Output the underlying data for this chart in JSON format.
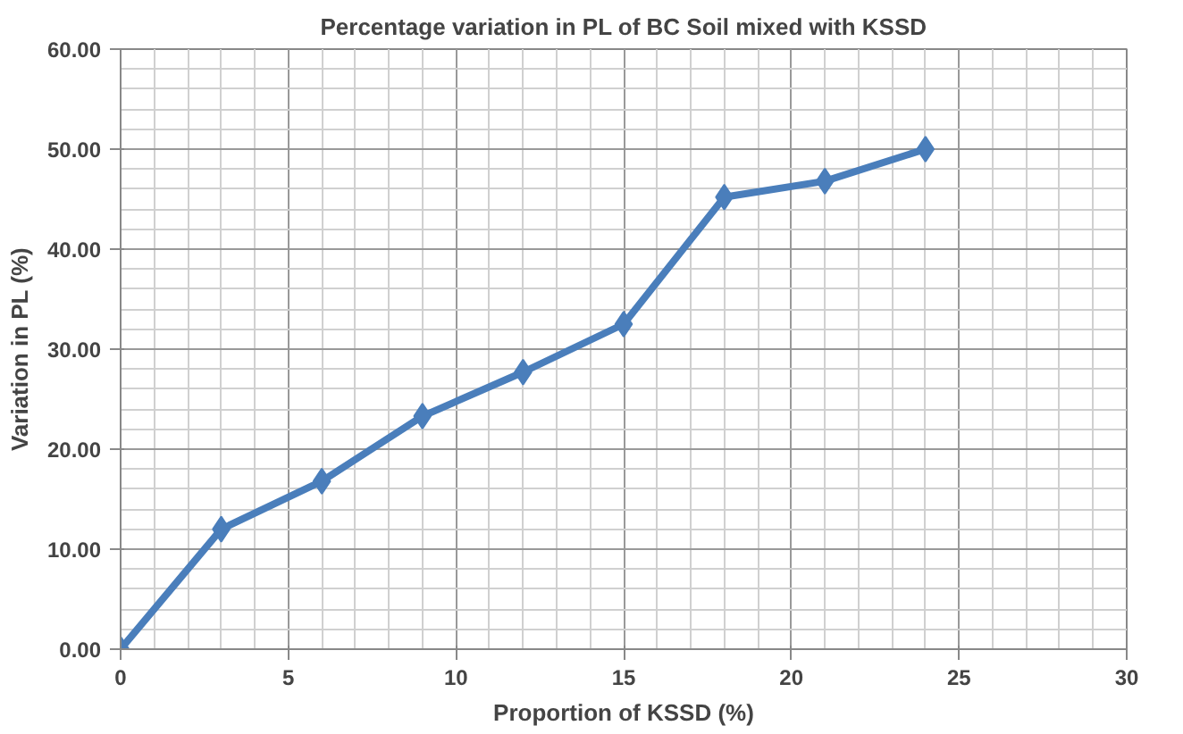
{
  "chart_data": {
    "type": "line",
    "title": "Percentage variation in PL of BC Soil mixed with KSSD",
    "xlabel": "Proportion of KSSD (%)",
    "ylabel": "Variation in PL (%)",
    "x": [
      0,
      3,
      6,
      9,
      12,
      15,
      18,
      21,
      24
    ],
    "series": [
      {
        "color": "#4a7ebb",
        "values": [
          0,
          12.0,
          16.8,
          23.3,
          27.7,
          32.5,
          45.2,
          46.8,
          50.0
        ]
      }
    ],
    "xlim": [
      0,
      30
    ],
    "xticks": [
      0,
      5,
      10,
      15,
      20,
      25,
      30
    ],
    "ylim": [
      0,
      60
    ],
    "yticks": [
      {
        "value": 0,
        "label": "0.00"
      },
      {
        "value": 10,
        "label": "10.00"
      },
      {
        "value": 20,
        "label": "20.00"
      },
      {
        "value": 30,
        "label": "30.00"
      },
      {
        "value": 40,
        "label": "40.00"
      },
      {
        "value": 50,
        "label": "50.00"
      },
      {
        "value": 60,
        "label": "60.00"
      }
    ],
    "grid": true,
    "marker": "diamond",
    "line_style": "solid"
  }
}
